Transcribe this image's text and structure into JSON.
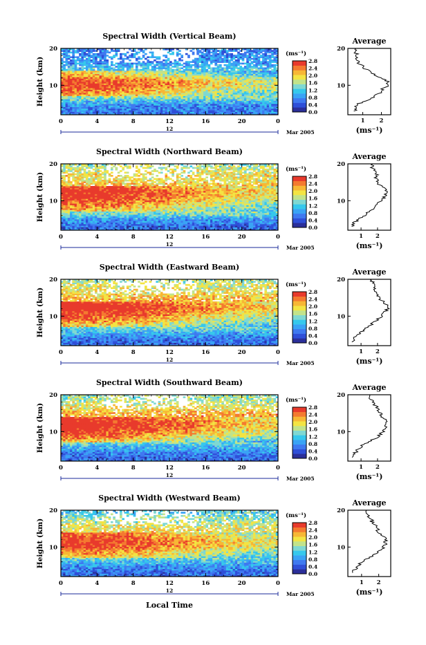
{
  "figure": {
    "xlabel": "Local Time",
    "ylabel": "Height (km)",
    "day_label": "12",
    "month_label": "Mar 2005",
    "unit_label": "(ms⁻¹)",
    "avg_title": "Average",
    "avg_xlabel": "(ms⁻¹)"
  },
  "colormap": [
    "#2b2f9a",
    "#2f4fd8",
    "#3f79f0",
    "#3aa3f5",
    "#36c8ec",
    "#7fd8d2",
    "#c2e38a",
    "#f3e443",
    "#f7b735",
    "#f47a30",
    "#e83a2c"
  ],
  "colorbar_ticks": [
    "0.0",
    "0.4",
    "0.8",
    "1.2",
    "1.6",
    "2.0",
    "2.4",
    "2.8"
  ],
  "chart_data": [
    {
      "type": "heatmap",
      "title": "Spectral Width (Vertical Beam)",
      "x_ticks": [
        "0",
        "4",
        "8",
        "12",
        "16",
        "20",
        "0"
      ],
      "y_ticks": [
        "20",
        "10"
      ],
      "xlim": [
        0,
        24
      ],
      "ylim": [
        2,
        20
      ],
      "clim": [
        0.0,
        2.8
      ],
      "avg_profile": {
        "x_ticks": [
          "1",
          "2"
        ],
        "y_ticks": [
          "20",
          "10"
        ],
        "xlim": [
          0.2,
          2.5
        ],
        "height": [
          3,
          4,
          5,
          6,
          7,
          8,
          9,
          10,
          11,
          12,
          13,
          14,
          15,
          16,
          17,
          18,
          19,
          20
        ],
        "width": [
          0.6,
          0.6,
          0.8,
          1.2,
          1.6,
          1.9,
          2.1,
          2.3,
          2.3,
          2.0,
          1.6,
          1.3,
          1.0,
          0.8,
          0.7,
          0.7,
          0.6,
          0.6
        ]
      }
    },
    {
      "type": "heatmap",
      "title": "Spectral Width (Northward Beam)",
      "x_ticks": [
        "0",
        "4",
        "8",
        "12",
        "16",
        "20",
        "0"
      ],
      "y_ticks": [
        "20",
        "10"
      ],
      "xlim": [
        0,
        24
      ],
      "ylim": [
        2,
        20
      ],
      "clim": [
        0.0,
        2.8
      ],
      "avg_profile": {
        "x_ticks": [
          "1",
          "2"
        ],
        "y_ticks": [
          "20",
          "10"
        ],
        "xlim": [
          0.2,
          2.8
        ],
        "height": [
          3,
          4,
          5,
          6,
          7,
          8,
          9,
          10,
          11,
          12,
          13,
          14,
          15,
          16,
          17,
          18,
          19,
          20
        ],
        "width": [
          0.5,
          0.6,
          0.8,
          1.2,
          1.5,
          1.8,
          2.0,
          2.2,
          2.4,
          2.5,
          2.5,
          2.2,
          2.0,
          1.9,
          2.0,
          1.8,
          1.7,
          1.6
        ]
      }
    },
    {
      "type": "heatmap",
      "title": "Spectral Width (Eastward Beam)",
      "x_ticks": [
        "0",
        "4",
        "8",
        "12",
        "16",
        "20",
        "0"
      ],
      "y_ticks": [
        "20",
        "10"
      ],
      "xlim": [
        0,
        24
      ],
      "ylim": [
        2,
        20
      ],
      "clim": [
        0.0,
        2.8
      ],
      "avg_profile": {
        "x_ticks": [
          "1",
          "2"
        ],
        "y_ticks": [
          "20",
          "10"
        ],
        "xlim": [
          0.2,
          2.8
        ],
        "height": [
          3,
          4,
          5,
          6,
          7,
          8,
          9,
          10,
          11,
          12,
          13,
          14,
          15,
          16,
          17,
          18,
          19,
          20
        ],
        "width": [
          0.5,
          0.6,
          0.8,
          1.1,
          1.4,
          1.7,
          2.0,
          2.2,
          2.4,
          2.6,
          2.6,
          2.3,
          2.1,
          2.0,
          1.9,
          1.8,
          1.7,
          1.6
        ]
      }
    },
    {
      "type": "heatmap",
      "title": "Spectral Width (Southward Beam)",
      "x_ticks": [
        "0",
        "4",
        "8",
        "12",
        "16",
        "20",
        "0"
      ],
      "y_ticks": [
        "20",
        "10"
      ],
      "xlim": [
        0,
        24
      ],
      "ylim": [
        2,
        20
      ],
      "clim": [
        0.0,
        2.8
      ],
      "avg_profile": {
        "x_ticks": [
          "1",
          "2"
        ],
        "y_ticks": [
          "20",
          "10"
        ],
        "xlim": [
          0.2,
          2.8
        ],
        "height": [
          3,
          4,
          5,
          6,
          7,
          8,
          9,
          10,
          11,
          12,
          13,
          14,
          15,
          16,
          17,
          18,
          19,
          20
        ],
        "width": [
          0.5,
          0.6,
          0.8,
          1.0,
          1.4,
          1.8,
          2.1,
          2.3,
          2.5,
          2.6,
          2.5,
          2.3,
          2.2,
          2.0,
          1.9,
          1.7,
          1.6,
          1.5
        ]
      }
    },
    {
      "type": "heatmap",
      "title": "Spectral Width (Westward Beam)",
      "x_ticks": [
        "0",
        "4",
        "8",
        "12",
        "16",
        "20",
        "0"
      ],
      "y_ticks": [
        "20",
        "10"
      ],
      "xlim": [
        0,
        24
      ],
      "ylim": [
        2,
        20
      ],
      "clim": [
        0.0,
        2.8
      ],
      "avg_profile": {
        "x_ticks": [
          "1",
          "2"
        ],
        "y_ticks": [
          "20",
          "10"
        ],
        "xlim": [
          0.2,
          2.7
        ],
        "height": [
          3,
          4,
          5,
          6,
          7,
          8,
          9,
          10,
          11,
          12,
          13,
          14,
          15,
          16,
          17,
          18,
          19,
          20
        ],
        "width": [
          0.5,
          0.6,
          0.8,
          1.0,
          1.4,
          1.8,
          2.0,
          2.3,
          2.4,
          2.4,
          2.2,
          2.0,
          1.9,
          1.8,
          1.6,
          1.5,
          1.3,
          1.2
        ]
      }
    }
  ]
}
